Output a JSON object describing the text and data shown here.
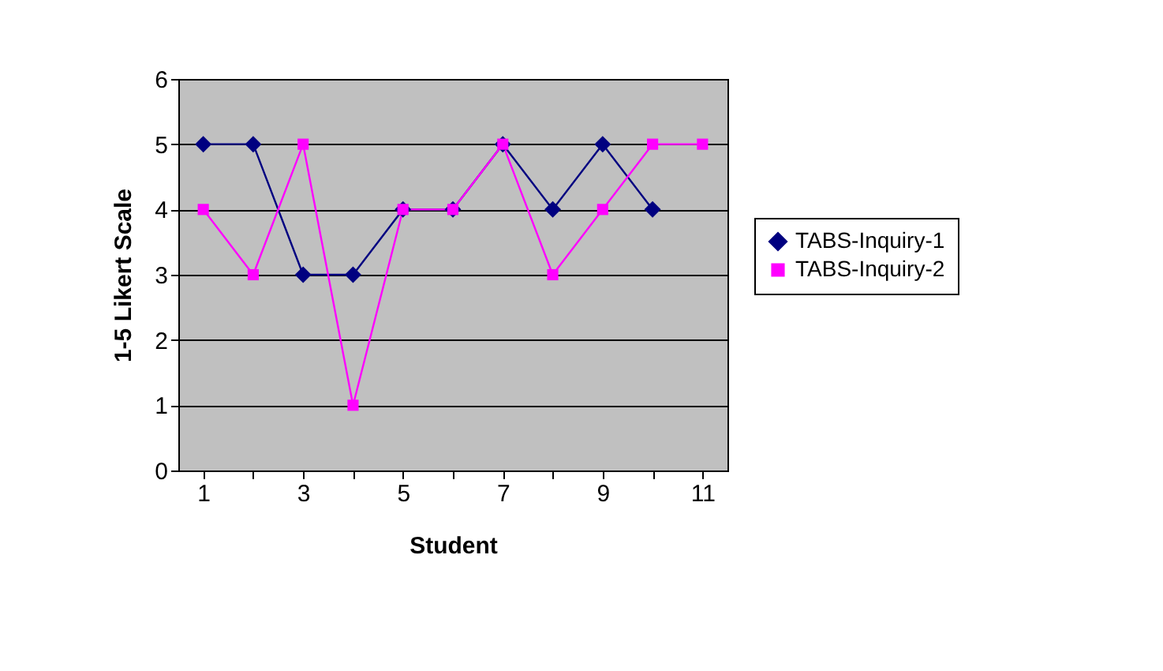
{
  "chart_data": {
    "type": "line",
    "xlabel": "Student",
    "ylabel": "1-5 Likert Scale",
    "categories": [
      "1",
      null,
      "3",
      null,
      "5",
      null,
      "7",
      null,
      "9",
      null,
      "11"
    ],
    "series": [
      {
        "name": "TABS-Inquiry-1",
        "color": "#000080",
        "marker": "diamond",
        "values": [
          5,
          5,
          3,
          3,
          4,
          4,
          5,
          4,
          5,
          4,
          null
        ]
      },
      {
        "name": "TABS-Inquiry-2",
        "color": "#ff00ff",
        "marker": "square",
        "values": [
          4,
          3,
          5,
          1,
          4,
          4,
          5,
          3,
          4,
          5,
          5
        ]
      }
    ],
    "ylim": [
      0,
      6
    ],
    "yticks": [
      0,
      1,
      2,
      3,
      4,
      5,
      6
    ],
    "grid": "y",
    "legend": "right"
  }
}
